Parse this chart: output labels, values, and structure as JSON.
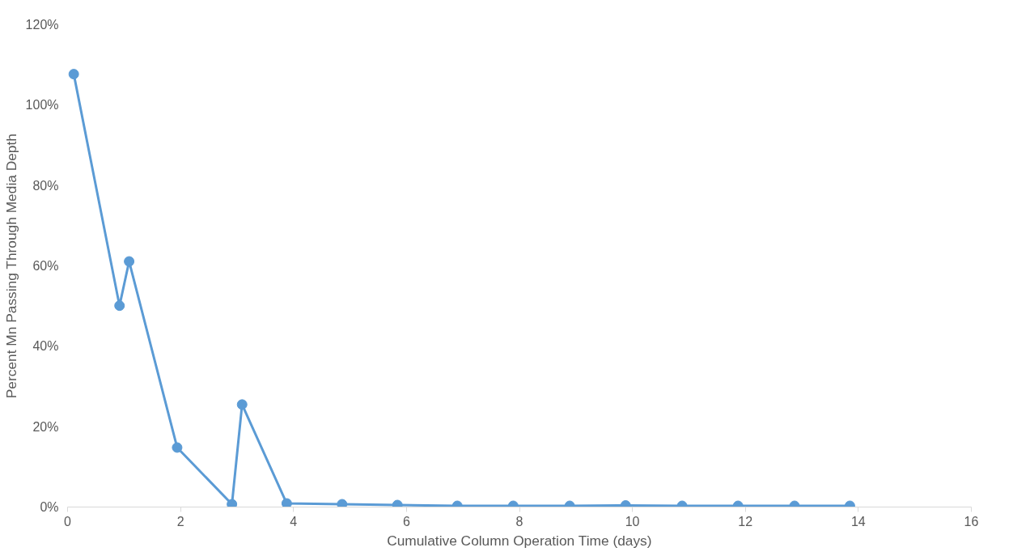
{
  "chart_data": {
    "type": "line",
    "xlabel": "Cumulative Column Operation Time (days)",
    "ylabel": "Percent Mn Passing Through Media Depth",
    "series": [
      {
        "color": "#5b9bd5",
        "marker": "circle",
        "line_style": "solid",
        "x": [
          0.11,
          0.92,
          1.09,
          1.94,
          2.91,
          3.09,
          3.88,
          4.86,
          5.84,
          6.9,
          7.89,
          8.89,
          9.88,
          10.88,
          11.87,
          12.87,
          13.85
        ],
        "values": [
          107.7,
          50.1,
          61.1,
          14.8,
          0.7,
          25.5,
          0.9,
          0.7,
          0.5,
          0.3,
          0.3,
          0.3,
          0.4,
          0.3,
          0.3,
          0.3,
          0.3
        ]
      }
    ],
    "xlim": [
      0,
      16
    ],
    "xticks": [
      0,
      2,
      4,
      6,
      8,
      10,
      12,
      14,
      16
    ],
    "ylim": [
      0,
      120
    ],
    "yticks": [
      {
        "value": 0,
        "label": "0%"
      },
      {
        "value": 20,
        "label": "20%"
      },
      {
        "value": 40,
        "label": "40%"
      },
      {
        "value": 60,
        "label": "60%"
      },
      {
        "value": 80,
        "label": "80%"
      },
      {
        "value": 100,
        "label": "100%"
      },
      {
        "value": 120,
        "label": "120%"
      }
    ],
    "grid": false
  }
}
